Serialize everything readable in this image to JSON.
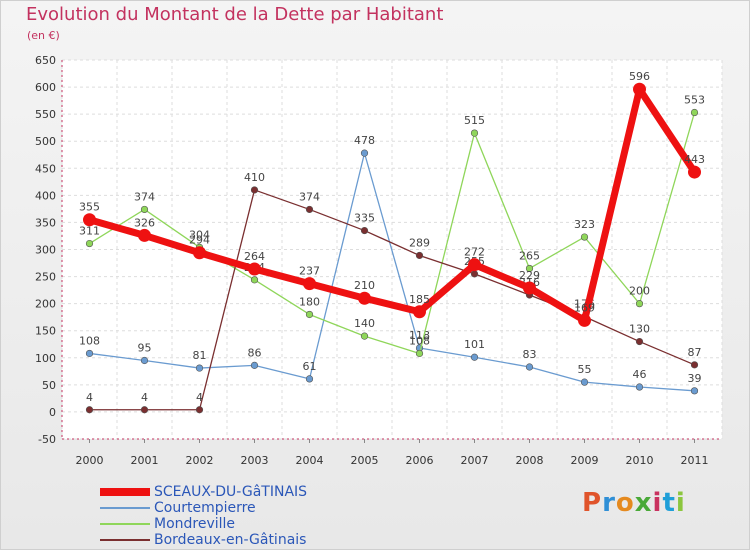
{
  "header": {
    "title": "Evolution du Montant de la Dette par Habitant",
    "subtitle": "(en €)"
  },
  "logo": {
    "text": "Proxiti",
    "colors": [
      "#e0542b",
      "#2f8fd6",
      "#e58a1f",
      "#49a938",
      "#c9325f",
      "#1f9fd8",
      "#8cc63e"
    ]
  },
  "chart_data": {
    "type": "line",
    "x": [
      "2000",
      "2001",
      "2002",
      "2003",
      "2004",
      "2005",
      "2006",
      "2007",
      "2008",
      "2009",
      "2010",
      "2011"
    ],
    "ylim": [
      -50,
      650
    ],
    "yticks": [
      -50,
      0,
      50,
      100,
      150,
      200,
      250,
      300,
      350,
      400,
      450,
      500,
      550,
      600,
      650
    ],
    "grid": true,
    "legend_position": "bottom-left",
    "series": [
      {
        "name": "Courtempierre",
        "color": "#6a9bd0",
        "values": [
          108,
          95,
          81,
          86,
          61,
          478,
          118,
          101,
          83,
          55,
          46,
          39
        ],
        "labels": [
          "108",
          "95",
          "81",
          "86",
          "61",
          "478",
          "118",
          "101",
          "83",
          "55",
          "46",
          "39"
        ]
      },
      {
        "name": "Mondreville",
        "color": "#8fd65a",
        "values": [
          311,
          374,
          304,
          244,
          180,
          140,
          108,
          515,
          265,
          323,
          200,
          553
        ],
        "labels": [
          "311",
          "374",
          "304",
          "244",
          "180",
          "140",
          "108",
          "515",
          "265",
          "323",
          "200",
          "553"
        ]
      },
      {
        "name": "Bordeaux-en-Gâtinais",
        "color": "#7a2f30",
        "values": [
          4,
          4,
          4,
          410,
          374,
          335,
          289,
          255,
          216,
          176,
          130,
          87
        ],
        "labels": [
          "4",
          "4",
          "4",
          "410",
          "374",
          "335",
          "289",
          "255",
          "216",
          "176",
          "130",
          "87"
        ]
      },
      {
        "name": "SCEAUX-DU-GâTINAIS",
        "color": "#ee1111",
        "values": [
          355,
          326,
          294,
          264,
          237,
          210,
          185,
          272,
          229,
          169,
          596,
          443
        ],
        "labels": [
          "355",
          "326",
          "294",
          "264",
          "237",
          "210",
          "185",
          "272",
          "229",
          "169",
          "596",
          "443"
        ],
        "emphasis": true
      }
    ],
    "legend": [
      {
        "label": "SCEAUX-DU-GâTINAIS",
        "color": "#ee1111",
        "emphasis": true
      },
      {
        "label": "Courtempierre",
        "color": "#6a9bd0"
      },
      {
        "label": "Mondreville",
        "color": "#8fd65a"
      },
      {
        "label": "Bordeaux-en-Gâtinais",
        "color": "#7a2f30"
      }
    ]
  }
}
